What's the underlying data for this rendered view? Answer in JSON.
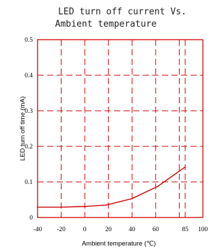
{
  "chart_data": {
    "type": "line",
    "title_lines": [
      "LED turn off current Vs.",
      "Ambient temperature"
    ],
    "xlabel": "Ambient temperature (℃)",
    "ylabel": "LED turn off time (mA)",
    "xlim": [
      -40,
      100
    ],
    "ylim": [
      0,
      0.5
    ],
    "x_ticks": [
      -40,
      -20,
      0,
      20,
      40,
      60,
      85,
      100
    ],
    "x_tick_labels": [
      "-40",
      "-20",
      "0",
      "20",
      "40",
      "60",
      "85",
      "100"
    ],
    "x_gridlines": [
      -20,
      0,
      20,
      40,
      60,
      80,
      85
    ],
    "y_ticks": [
      0,
      0.1,
      0.2,
      0.3,
      0.4,
      0.5
    ],
    "y_tick_labels": [
      "0",
      "0.1",
      "0.2",
      "0.3",
      "0.4",
      "0.5"
    ],
    "grid": true,
    "grid_style": "dashed",
    "series": [
      {
        "x": [
          -40,
          -20,
          0,
          18,
          40,
          62,
          85
        ],
        "values": [
          0.029,
          0.029,
          0.031,
          0.035,
          0.053,
          0.088,
          0.142
        ]
      }
    ]
  },
  "colors": {
    "accent": "#cc0000",
    "text": "#000000",
    "title": "#222222"
  }
}
